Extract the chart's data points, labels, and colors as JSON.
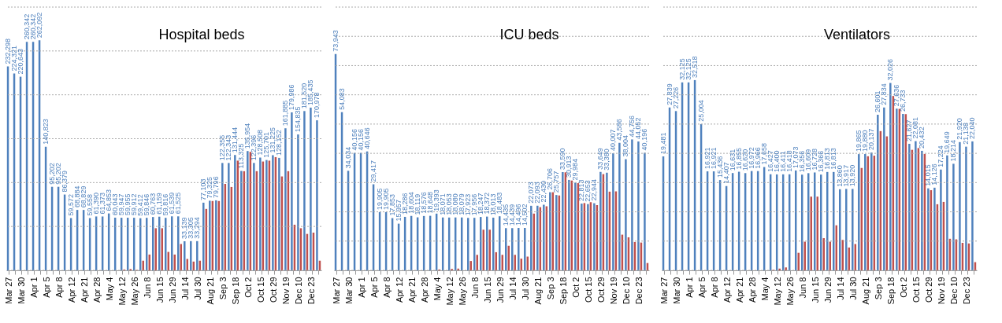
{
  "chart_data": [
    {
      "type": "bar",
      "title": "Hospital beds",
      "categories": [
        "Mar 27",
        null,
        "Mar 30",
        null,
        "Apr 1",
        null,
        "Apr 5",
        null,
        "Apr 8",
        null,
        "Apr 12",
        null,
        "Apr 21",
        null,
        "Apr 28",
        null,
        "May 4",
        null,
        "May 12",
        null,
        "May 26",
        null,
        "Jun 8",
        null,
        "Jun 15",
        null,
        "Jun 29",
        null,
        "Jul 14",
        null,
        "Jul 30",
        null,
        "Aug 21",
        null,
        "Sep 3",
        null,
        "Sep 18",
        null,
        "Oct 2",
        null,
        "Oct 15",
        null,
        "Oct 29",
        null,
        "Nov 19",
        null,
        "Dec 10",
        null,
        "Dec 23",
        null
      ],
      "series": [
        {
          "color": "#4f81bd",
          "values": [
            232298,
            224321,
            220643,
            260342,
            260342,
            262092,
            140823,
            95202,
            95202,
            86379,
            59572,
            68884,
            68829,
            59558,
            61390,
            61373,
            64853,
            60043,
            59947,
            59955,
            59912,
            59412,
            59846,
            60763,
            61159,
            59816,
            61539,
            61525,
            33139,
            33305,
            33294,
            77103,
            79325,
            79796,
            122355,
            122343,
            131444,
            113325,
            135954,
            122396,
            128508,
            125701,
            131225,
            128152,
            161885,
            179986,
            154835,
            181520,
            185435,
            170978
          ],
          "value_labels": [
            "232,298",
            "224,321",
            "220,643",
            "260,342",
            "260,342",
            "262,092",
            "140,823",
            "95,202",
            "95,202",
            "86,379",
            "59,572",
            "68,884",
            "68,829",
            "59,558",
            "61,390",
            "61,373",
            "64,853",
            "60,043",
            "59,947",
            "59,955",
            "59,912",
            "59,412",
            "59,846",
            "60,763",
            "61,159",
            "59,816",
            "61,539",
            "61,525",
            "33,139",
            "33,305",
            "33,294",
            "77,103",
            "79,325",
            "79,796",
            "122,355",
            "122,343",
            "131,444",
            "113,325",
            "135,954",
            "122,396",
            "128,508",
            "125,701",
            "131,225",
            "128,152",
            "161,885",
            "179,986",
            "154,835",
            "181,520",
            "185,435",
            "170,978"
          ]
        },
        {
          "color": "#c0504d",
          "values": [
            null,
            null,
            null,
            null,
            null,
            null,
            null,
            null,
            null,
            null,
            null,
            null,
            null,
            null,
            null,
            null,
            null,
            null,
            1000,
            1500,
            500,
            11000,
            18000,
            48000,
            48000,
            21000,
            18000,
            30000,
            13000,
            10000,
            11000,
            70000,
            79000,
            79000,
            98500,
            95000,
            125000,
            113000,
            135000,
            113000,
            124000,
            125000,
            129000,
            107000,
            113000,
            52000,
            48000,
            41500,
            43000,
            11000
          ]
        }
      ],
      "ylim": [
        0,
        300000
      ],
      "yticks": [
        {
          "value": 0,
          "label": null
        },
        {
          "value": 50000,
          "label": null
        },
        {
          "value": 100000,
          "label": null
        },
        {
          "value": 150000,
          "label": null
        },
        {
          "value": 200000,
          "label": null
        },
        {
          "value": 250000,
          "label": null
        },
        {
          "value": 300000,
          "label": null
        }
      ],
      "tick_labels": "x",
      "grid": "y"
    },
    {
      "type": "bar",
      "title": "ICU beds",
      "categories": [
        "Mar 27",
        null,
        "Mar 30",
        null,
        "Apr 1",
        null,
        "Apr 5",
        null,
        "Apr 8",
        null,
        "Apr 12",
        null,
        "Apr 21",
        null,
        "Apr 28",
        null,
        "May 4",
        null,
        "May 12",
        null,
        "May 26",
        null,
        "Jun 8",
        null,
        "Jun 15",
        null,
        "Jun 29",
        null,
        "Jul 14",
        null,
        "Jul 30",
        null,
        "Aug 21",
        null,
        "Sep 3",
        null,
        "Sep 18",
        null,
        "Oct 2",
        null,
        "Oct 15",
        null,
        "Oct 29",
        null,
        "Nov 19",
        null,
        "Dec 10",
        null,
        "Dec 23",
        null
      ],
      "series": [
        {
          "color": "#4f81bd",
          "values": [
            73943,
            54083,
            34034,
            40156,
            40156,
            40646,
            29417,
            19905,
            19905,
            17853,
            15957,
            18286,
            18604,
            18119,
            18576,
            18648,
            19393,
            18071,
            18053,
            18080,
            18079,
            17923,
            17956,
            18247,
            18372,
            18013,
            18483,
            14435,
            14439,
            14496,
            14502,
            22073,
            22093,
            22430,
            26706,
            25757,
            33590,
            30913,
            29984,
            22813,
            22653,
            22944,
            33649,
            33380,
            40007,
            43586,
            38004,
            44756,
            44052,
            40196
          ],
          "value_labels": [
            "73,943",
            "54,083",
            "34,034",
            "40,156",
            "40,156",
            "40,646",
            "29,417",
            "19,905",
            "19,905",
            "17,853",
            "15,957",
            "18,286",
            "18,604",
            "18,119",
            "18,576",
            "18,648",
            "19,393",
            "18,071",
            "18,053",
            "18,080",
            "18,079",
            "17,923",
            "17,956",
            "18,247",
            "18,372",
            "18,013",
            "18,483",
            "14,435",
            "14,439",
            "14,496",
            "14,502",
            "22,073",
            "22,093",
            "22,430",
            "26,706",
            "25,757",
            "33,590",
            "30,913",
            "29,984",
            "22,813",
            "22,653",
            "22,944",
            "33,649",
            "33,380",
            "40,007",
            "43,586",
            "38,004",
            "44,756",
            "44,052",
            "40,196"
          ]
        },
        {
          "color": "#c0504d",
          "values": [
            null,
            null,
            null,
            null,
            null,
            null,
            null,
            null,
            null,
            null,
            null,
            null,
            null,
            null,
            null,
            null,
            300,
            null,
            500,
            600,
            null,
            3200,
            5300,
            13900,
            13900,
            6200,
            5300,
            8400,
            5300,
            4000,
            4700,
            19400,
            21600,
            21900,
            26700,
            25600,
            33500,
            30700,
            29800,
            23000,
            23300,
            22300,
            32900,
            26900,
            27000,
            12200,
            11300,
            9700,
            9500,
            2500
          ]
        }
      ],
      "ylim": [
        0,
        90000
      ],
      "yticks": [
        {
          "value": 0,
          "label": null
        },
        {
          "value": 10000,
          "label": null
        },
        {
          "value": 20000,
          "label": null
        },
        {
          "value": 30000,
          "label": null
        },
        {
          "value": 40000,
          "label": null
        },
        {
          "value": 50000,
          "label": null
        },
        {
          "value": 60000,
          "label": null
        },
        {
          "value": 70000,
          "label": null
        },
        {
          "value": 80000,
          "label": null
        },
        {
          "value": 90000,
          "label": null
        }
      ],
      "tick_labels": "x",
      "grid": "y"
    },
    {
      "type": "bar",
      "title": "Ventilators",
      "categories": [
        "Mar 27",
        null,
        "Mar 30",
        null,
        "Apr 1",
        null,
        "Apr 5",
        null,
        "Apr 8",
        null,
        "Apr 12",
        null,
        "Apr 21",
        null,
        "Apr 28",
        null,
        "May 4",
        null,
        "May 12",
        null,
        "May 26",
        null,
        "Jun 8",
        null,
        "Jun 15",
        null,
        "Jun 29",
        null,
        "Jul 14",
        null,
        "Jul 30",
        null,
        "Aug 21",
        null,
        "Sep 3",
        null,
        "Sep 18",
        null,
        "Oct 2",
        null,
        "Oct 15",
        null,
        "Oct 29",
        null,
        "Nov 19",
        null,
        "Dec 10",
        null,
        "Dec 23",
        null
      ],
      "series": [
        {
          "color": "#4f81bd",
          "values": [
            19481,
            27839,
            27226,
            32125,
            32125,
            32518,
            25004,
            16921,
            16921,
            15436,
            14407,
            16631,
            16855,
            16620,
            16972,
            16966,
            17658,
            16427,
            16400,
            16411,
            16418,
            17073,
            16356,
            16609,
            16728,
            16366,
            16813,
            16813,
            13860,
            13917,
            13920,
            19865,
            19880,
            20137,
            26601,
            27834,
            32026,
            27636,
            26733,
            21627,
            22081,
            20432,
            14015,
            14126,
            17224,
            19649,
            18214,
            21920,
            21138,
            22040
          ],
          "value_labels": [
            "19,481",
            "27,839",
            "27,226",
            "32,125",
            "32,125",
            "32,518",
            "25,004",
            "16,921",
            "16,921",
            "15,436",
            "14,407",
            "16,631",
            "16,855",
            "16,620",
            "16,972",
            "16,966",
            "17,658",
            "16,427",
            "16,400",
            "16,411",
            "16,418",
            "17,073",
            "16,356",
            "16,609",
            "16,728",
            "16,366",
            "16,813",
            "16,813",
            "13,860",
            "13,917",
            "13,920",
            "19,865",
            "19,880",
            "20,137",
            "26,601",
            "27,834",
            "32,026",
            "27,636",
            "26,733",
            "21,627",
            "22,081",
            "20,432",
            "14,015",
            "14,126",
            "17,224",
            "19,649",
            "18,214",
            "21,920",
            "21,138",
            "22,040"
          ]
        },
        {
          "color": "#c0504d",
          "values": [
            null,
            null,
            null,
            null,
            null,
            null,
            null,
            null,
            null,
            null,
            null,
            null,
            null,
            null,
            null,
            null,
            null,
            100,
            300,
            500,
            null,
            3000,
            4900,
            12600,
            12600,
            5500,
            4900,
            7700,
            5200,
            3900,
            4500,
            17500,
            19500,
            19600,
            23800,
            22900,
            29800,
            27600,
            26700,
            20600,
            20900,
            19900,
            13700,
            11300,
            11700,
            5400,
            5300,
            4700,
            4600,
            1400
          ]
        }
      ],
      "ylim": [
        0,
        45000
      ],
      "yticks": [
        {
          "value": 0,
          "label": null
        },
        {
          "value": 5000,
          "label": null
        },
        {
          "value": 10000,
          "label": null
        },
        {
          "value": 15000,
          "label": null
        },
        {
          "value": 20000,
          "label": null
        },
        {
          "value": 25000,
          "label": null
        },
        {
          "value": 30000,
          "label": null
        },
        {
          "value": 35000,
          "label": null
        },
        {
          "value": 40000,
          "label": null
        },
        {
          "value": 45000,
          "label": null
        }
      ],
      "tick_labels": "x",
      "grid": "y"
    }
  ]
}
